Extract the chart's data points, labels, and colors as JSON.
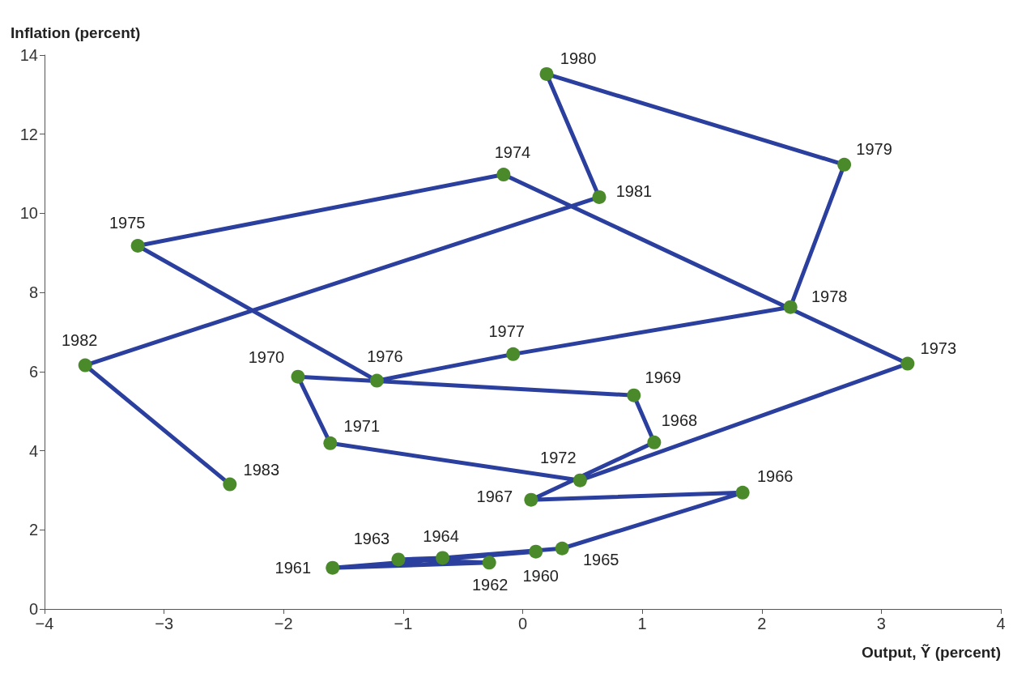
{
  "chart_data": {
    "type": "line",
    "xlabel": "Output, Ỹ (percent)",
    "ylabel": "Inflation (percent)",
    "x": [
      0.11,
      -1.59,
      -0.28,
      -1.04,
      -0.67,
      0.33,
      1.84,
      0.07,
      1.1,
      0.93,
      -1.88,
      -1.61,
      0.48,
      3.22,
      -0.16,
      -3.22,
      -1.22,
      -0.08,
      2.24,
      2.69,
      0.2,
      0.64,
      -3.66,
      -2.45
    ],
    "series": [
      {
        "color": "#2b3f9e",
        "colors": [
          "#4a8a2a",
          "#4a8a2a",
          "#4a8a2a",
          "#4a8a2a",
          "#4a8a2a",
          "#4a8a2a",
          "#4a8a2a",
          "#4a8a2a",
          "#4a8a2a",
          "#4a8a2a",
          "#4a8a2a",
          "#4a8a2a",
          "#4a8a2a",
          "#4a8a2a",
          "#4a8a2a",
          "#4a8a2a",
          "#4a8a2a",
          "#4a8a2a",
          "#4a8a2a",
          "#4a8a2a",
          "#4a8a2a",
          "#4a8a2a",
          "#4a8a2a",
          "#4a8a2a"
        ],
        "values": [
          1.45,
          1.04,
          1.17,
          1.25,
          1.29,
          1.53,
          2.94,
          2.76,
          4.21,
          5.4,
          5.87,
          4.19,
          3.25,
          6.2,
          10.98,
          9.18,
          5.77,
          6.44,
          7.63,
          11.23,
          13.52,
          10.41,
          6.16,
          3.15
        ]
      }
    ],
    "annotations": [
      {
        "text": "1960",
        "x": 0.11,
        "y": 1.45
      },
      {
        "text": "1961",
        "x": -1.59,
        "y": 1.04
      },
      {
        "text": "1962",
        "x": -0.28,
        "y": 1.17
      },
      {
        "text": "1963",
        "x": -1.04,
        "y": 1.25
      },
      {
        "text": "1964",
        "x": -0.67,
        "y": 1.29
      },
      {
        "text": "1965",
        "x": 0.33,
        "y": 1.53
      },
      {
        "text": "1966",
        "x": 1.84,
        "y": 2.94
      },
      {
        "text": "1967",
        "x": 0.07,
        "y": 2.76
      },
      {
        "text": "1968",
        "x": 1.1,
        "y": 4.21
      },
      {
        "text": "1969",
        "x": 0.93,
        "y": 5.4
      },
      {
        "text": "1970",
        "x": -1.88,
        "y": 5.87
      },
      {
        "text": "1971",
        "x": -1.61,
        "y": 4.19
      },
      {
        "text": "1972",
        "x": 0.48,
        "y": 3.25
      },
      {
        "text": "1973",
        "x": 3.22,
        "y": 6.2
      },
      {
        "text": "1974",
        "x": -0.16,
        "y": 10.98
      },
      {
        "text": "1975",
        "x": -3.22,
        "y": 9.18
      },
      {
        "text": "1976",
        "x": -1.22,
        "y": 5.77
      },
      {
        "text": "1977",
        "x": -0.08,
        "y": 6.44
      },
      {
        "text": "1978",
        "x": 2.24,
        "y": 7.63
      },
      {
        "text": "1979",
        "x": 2.69,
        "y": 11.23
      },
      {
        "text": "1980",
        "x": 0.2,
        "y": 13.52
      },
      {
        "text": "1981",
        "x": 0.64,
        "y": 10.41
      },
      {
        "text": "1982",
        "x": -3.66,
        "y": 6.16
      },
      {
        "text": "1983",
        "x": -2.45,
        "y": 3.15
      }
    ],
    "xlim": [
      -4,
      4
    ],
    "xticks": [
      {
        "value": -4,
        "label": "−4"
      },
      {
        "value": -3,
        "label": "−3"
      },
      {
        "value": -2,
        "label": "−2"
      },
      {
        "value": -1,
        "label": "−1"
      },
      0,
      1,
      2,
      3,
      4
    ],
    "ylim": [
      0,
      14
    ],
    "yticks": [
      0,
      2,
      4,
      6,
      8,
      10,
      12,
      14
    ],
    "grid": false,
    "marker": "circle",
    "line_style": "solid"
  }
}
